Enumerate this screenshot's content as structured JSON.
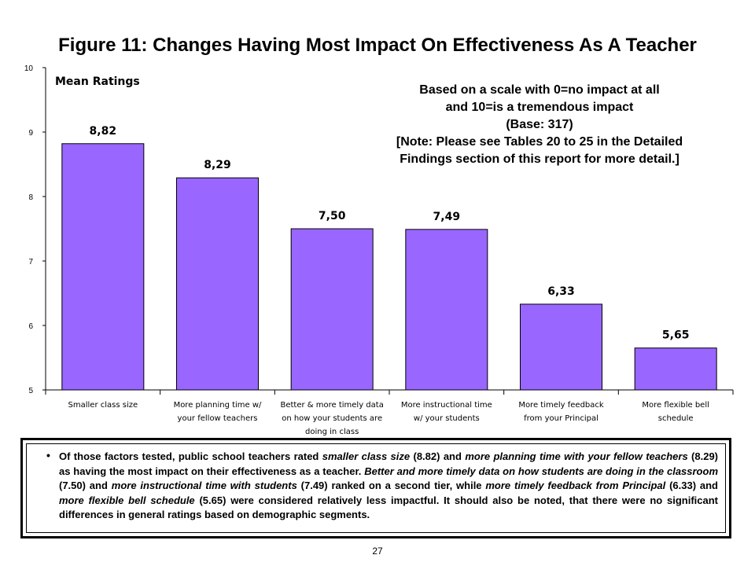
{
  "figure": {
    "title": "Figure 11:  Changes Having Most Impact On Effectiveness As A Teacher"
  },
  "chart_data": {
    "type": "bar",
    "ylabel": "Mean Ratings",
    "ylim": [
      5,
      10
    ],
    "yticks": [
      "5",
      "6",
      "7",
      "8",
      "9",
      "10"
    ],
    "categories": [
      [
        "Smaller class size"
      ],
      [
        "More planning time w/",
        "your fellow teachers"
      ],
      [
        "Better & more timely data",
        "on how your students are",
        "doing in class"
      ],
      [
        "More instructional time",
        "w/ your students"
      ],
      [
        "More timely feedback",
        "from your Principal"
      ],
      [
        "More flexible bell",
        "schedule"
      ]
    ],
    "values": [
      8.82,
      8.29,
      7.5,
      7.49,
      6.33,
      5.65
    ],
    "data_labels": [
      "8,82",
      "8,29",
      "7,50",
      "7,49",
      "6,33",
      "5,65"
    ],
    "bar_color": "#9966FF",
    "grid": false
  },
  "note": {
    "lines": [
      "Based on a scale with 0=no impact at all",
      "and 10=is a tremendous impact",
      "(Base: 317)",
      "[Note: Please see Tables 20 to 25 in the Detailed",
      "Findings section of this report for more detail.]"
    ]
  },
  "summary": {
    "bullet": "•",
    "segments": [
      {
        "t": "Of those factors tested, public school teachers rated ",
        "i": false
      },
      {
        "t": "smaller class size",
        "i": true
      },
      {
        "t": " (8.82) and ",
        "i": false
      },
      {
        "t": "more planning time with your fellow teachers",
        "i": true
      },
      {
        "t": " (8.29) as having the most impact on their effectiveness as a teacher.  ",
        "i": false
      },
      {
        "t": "Better and more timely data on how students are doing in the classroom",
        "i": true
      },
      {
        "t": " (7.50) and ",
        "i": false
      },
      {
        "t": "more instructional time with students",
        "i": true
      },
      {
        "t": " (7.49) ranked on a second tier, while ",
        "i": false
      },
      {
        "t": "more timely feedback from Principal",
        "i": true
      },
      {
        "t": " (6.33) and ",
        "i": false
      },
      {
        "t": "more flexible bell schedule",
        "i": true
      },
      {
        "t": " (5.65) were considered relatively less impactful.  It should also be noted, that there were no significant differences in general ratings based on demographic segments.",
        "i": false
      }
    ]
  },
  "page_number": "27"
}
